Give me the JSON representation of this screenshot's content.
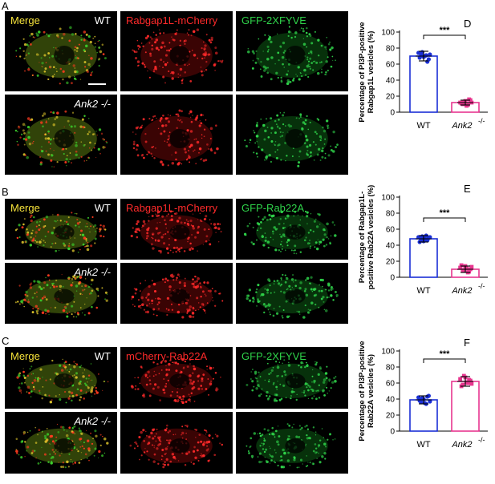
{
  "panels": {
    "A": {
      "letter": "A",
      "row_labels": [
        "WT",
        "Ank2 -/-"
      ],
      "channels": [
        "Merge",
        "Rabgap1L-mCherry",
        "GFP-2XFYVE"
      ]
    },
    "B": {
      "letter": "B",
      "row_labels": [
        "WT",
        "Ank2 -/-"
      ],
      "channels": [
        "Merge",
        "Rabgap1L-mCherry",
        "GFP-Rab22A"
      ]
    },
    "C": {
      "letter": "C",
      "row_labels": [
        "WT",
        "Ank2 -/-"
      ],
      "channels": [
        "Merge",
        "mCherry-Rab22A",
        "GFP-2XFYVE"
      ]
    }
  },
  "colors": {
    "merge": "#f5e23a",
    "red": "#ff2a2a",
    "green": "#2fd34a",
    "wt_blue": "#1a2fd6",
    "ko_pink": "#e8368f"
  },
  "chart_data": [
    {
      "letter": "D",
      "type": "bar",
      "ylabel_lines": [
        "Percentage of PI3P-positive",
        "Rabgap1L vesicles (%)"
      ],
      "categories": [
        "WT",
        "Ank2 -/-"
      ],
      "values": [
        70,
        12
      ],
      "errors": [
        6,
        3
      ],
      "ylim": [
        0,
        100
      ],
      "yticks": [
        0,
        20,
        40,
        60,
        80,
        100
      ],
      "significance": "***",
      "points": [
        [
          74,
          72,
          69,
          71,
          66,
          68,
          75,
          70,
          63,
          72
        ],
        [
          12,
          10,
          14,
          9,
          15,
          11,
          13,
          8,
          16,
          12
        ]
      ]
    },
    {
      "letter": "E",
      "type": "bar",
      "ylabel_lines": [
        "Percentage of Rabgap1L-",
        "positive Rab22A vesicles (%)"
      ],
      "categories": [
        "WT",
        "Ank2 -/-"
      ],
      "values": [
        48,
        10
      ],
      "errors": [
        4,
        4
      ],
      "ylim": [
        0,
        100
      ],
      "yticks": [
        0,
        20,
        40,
        60,
        80,
        100
      ],
      "significance": "***",
      "points": [
        [
          50,
          47,
          45,
          52,
          49,
          44,
          51,
          48,
          46,
          50
        ],
        [
          12,
          8,
          14,
          6,
          10,
          15,
          9,
          11,
          7,
          13
        ]
      ]
    },
    {
      "letter": "F",
      "type": "bar",
      "ylabel_lines": [
        "Percentage of PI3P-positive",
        "Rab22A vesicles (%)"
      ],
      "categories": [
        "WT",
        "Ank2 -/-"
      ],
      "values": [
        39,
        62
      ],
      "errors": [
        5,
        6
      ],
      "ylim": [
        0,
        100
      ],
      "yticks": [
        0,
        20,
        40,
        60,
        80,
        100
      ],
      "significance": "***",
      "points": [
        [
          42,
          36,
          40,
          34,
          44,
          38,
          41,
          35,
          43,
          37
        ],
        [
          65,
          58,
          67,
          60,
          63,
          56,
          69,
          61,
          64,
          59
        ]
      ]
    }
  ]
}
